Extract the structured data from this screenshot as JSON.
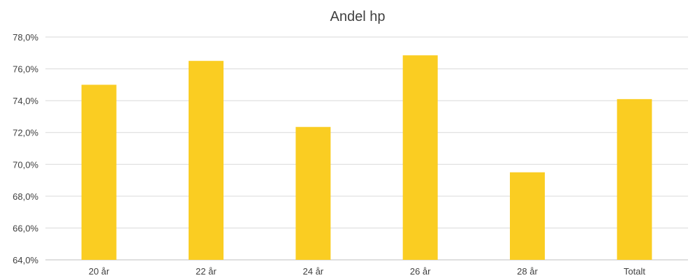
{
  "chart_data": {
    "type": "bar",
    "title": "Andel hp",
    "xlabel": "",
    "ylabel": "",
    "categories": [
      "20 år",
      "22 år",
      "24 år",
      "26 år",
      "28 år",
      "Totalt"
    ],
    "values": [
      75.0,
      76.5,
      72.35,
      76.85,
      69.5,
      74.1
    ],
    "ylim": [
      64,
      78
    ],
    "yticks": [
      64,
      66,
      68,
      70,
      72,
      74,
      76,
      78
    ],
    "ytick_labels": [
      "64,0%",
      "66,0%",
      "68,0%",
      "70,0%",
      "72,0%",
      "74,0%",
      "76,0%",
      "78,0%"
    ],
    "grid": true,
    "legend": "none",
    "bar_color": "#FACD22"
  }
}
